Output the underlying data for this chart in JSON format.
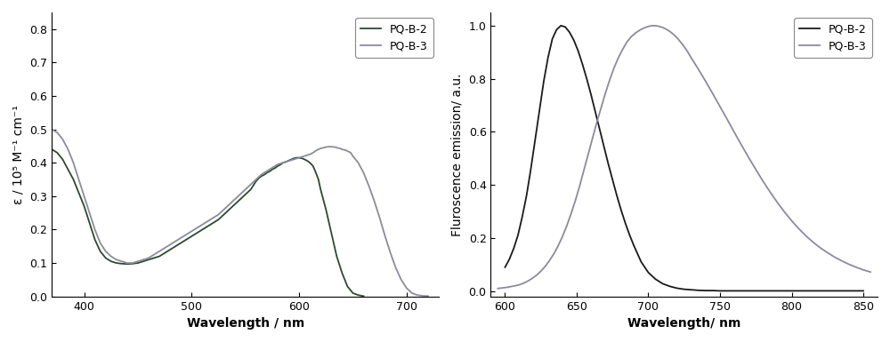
{
  "left_plot": {
    "xlabel": "Wavelength / nm",
    "ylabel": "ε / 10⁵ M⁻¹ cm⁻¹",
    "xlim": [
      370,
      730
    ],
    "ylim": [
      0.0,
      0.85
    ],
    "yticks": [
      0.0,
      0.1,
      0.2,
      0.3,
      0.4,
      0.5,
      0.6,
      0.7,
      0.8
    ],
    "xticks": [
      400,
      500,
      600,
      700
    ],
    "legend_labels": [
      "PQ-B-2",
      "PQ-B-3"
    ],
    "pqb2_color": "#2d4a2d",
    "pqb3_color": "#8b8b9e",
    "pqb2_x": [
      370,
      375,
      380,
      385,
      390,
      395,
      400,
      405,
      410,
      415,
      420,
      425,
      430,
      435,
      440,
      445,
      450,
      455,
      460,
      465,
      470,
      475,
      480,
      485,
      490,
      495,
      500,
      505,
      510,
      515,
      520,
      525,
      530,
      535,
      540,
      545,
      550,
      555,
      558,
      560,
      563,
      565,
      568,
      570,
      573,
      575,
      578,
      580,
      583,
      585,
      588,
      590,
      593,
      595,
      598,
      600,
      603,
      605,
      608,
      610,
      613,
      615,
      618,
      620,
      625,
      630,
      635,
      640,
      645,
      650,
      655,
      660
    ],
    "pqb2_y": [
      0.44,
      0.43,
      0.41,
      0.38,
      0.35,
      0.31,
      0.27,
      0.22,
      0.17,
      0.135,
      0.115,
      0.105,
      0.1,
      0.098,
      0.097,
      0.098,
      0.1,
      0.105,
      0.11,
      0.115,
      0.12,
      0.13,
      0.14,
      0.15,
      0.16,
      0.17,
      0.18,
      0.19,
      0.2,
      0.21,
      0.22,
      0.23,
      0.245,
      0.26,
      0.275,
      0.29,
      0.305,
      0.32,
      0.335,
      0.345,
      0.355,
      0.36,
      0.365,
      0.37,
      0.375,
      0.38,
      0.385,
      0.39,
      0.395,
      0.4,
      0.403,
      0.406,
      0.41,
      0.413,
      0.415,
      0.415,
      0.413,
      0.41,
      0.405,
      0.4,
      0.39,
      0.375,
      0.35,
      0.32,
      0.26,
      0.19,
      0.12,
      0.07,
      0.03,
      0.01,
      0.004,
      0.001
    ],
    "pqb3_x": [
      370,
      375,
      380,
      385,
      390,
      395,
      400,
      405,
      410,
      415,
      420,
      425,
      430,
      435,
      440,
      445,
      450,
      455,
      460,
      465,
      470,
      475,
      480,
      485,
      490,
      495,
      500,
      505,
      510,
      515,
      520,
      525,
      530,
      535,
      540,
      545,
      550,
      555,
      560,
      565,
      570,
      575,
      580,
      585,
      590,
      595,
      600,
      605,
      610,
      613,
      615,
      618,
      620,
      623,
      625,
      628,
      630,
      633,
      635,
      638,
      640,
      643,
      645,
      648,
      650,
      655,
      660,
      665,
      670,
      675,
      680,
      685,
      690,
      695,
      700,
      705,
      710,
      715,
      720
    ],
    "pqb3_y": [
      0.5,
      0.49,
      0.47,
      0.44,
      0.4,
      0.35,
      0.3,
      0.25,
      0.2,
      0.16,
      0.135,
      0.12,
      0.11,
      0.105,
      0.1,
      0.1,
      0.105,
      0.11,
      0.115,
      0.125,
      0.135,
      0.145,
      0.155,
      0.165,
      0.175,
      0.185,
      0.195,
      0.205,
      0.215,
      0.225,
      0.235,
      0.245,
      0.26,
      0.275,
      0.29,
      0.305,
      0.32,
      0.335,
      0.35,
      0.365,
      0.375,
      0.385,
      0.395,
      0.4,
      0.405,
      0.41,
      0.415,
      0.42,
      0.425,
      0.43,
      0.435,
      0.44,
      0.443,
      0.445,
      0.447,
      0.448,
      0.448,
      0.447,
      0.445,
      0.443,
      0.44,
      0.438,
      0.435,
      0.43,
      0.42,
      0.4,
      0.37,
      0.33,
      0.285,
      0.235,
      0.18,
      0.13,
      0.085,
      0.05,
      0.025,
      0.01,
      0.004,
      0.002,
      0.001
    ]
  },
  "right_plot": {
    "xlabel": "Wavelength/ nm",
    "ylabel": "Fluroscence emission/ a.u.",
    "xlim": [
      590,
      860
    ],
    "ylim": [
      -0.02,
      1.05
    ],
    "yticks": [
      0.0,
      0.2,
      0.4,
      0.6,
      0.8,
      1.0
    ],
    "xticks": [
      600,
      650,
      700,
      750,
      800,
      850
    ],
    "legend_labels": [
      "PQ-B-2",
      "PQ-B-3"
    ],
    "pqb2_color": "#1a1a1a",
    "pqb3_color": "#8b8b9e",
    "pqb2_x": [
      600,
      603,
      606,
      609,
      612,
      615,
      618,
      621,
      624,
      627,
      630,
      633,
      636,
      639,
      642,
      645,
      648,
      651,
      654,
      657,
      660,
      663,
      666,
      669,
      672,
      675,
      678,
      681,
      684,
      687,
      690,
      695,
      700,
      705,
      710,
      715,
      720,
      725,
      730,
      735,
      740,
      745,
      750,
      755,
      760,
      770,
      780,
      790,
      800,
      810,
      820,
      830,
      840,
      850
    ],
    "pqb2_y": [
      0.09,
      0.12,
      0.16,
      0.21,
      0.28,
      0.36,
      0.46,
      0.57,
      0.68,
      0.79,
      0.88,
      0.95,
      0.985,
      1.0,
      0.995,
      0.975,
      0.945,
      0.905,
      0.855,
      0.8,
      0.74,
      0.675,
      0.61,
      0.545,
      0.48,
      0.42,
      0.36,
      0.305,
      0.255,
      0.21,
      0.17,
      0.11,
      0.07,
      0.045,
      0.028,
      0.018,
      0.011,
      0.007,
      0.005,
      0.003,
      0.002,
      0.002,
      0.001,
      0.001,
      0.001,
      0.001,
      0.001,
      0.001,
      0.001,
      0.001,
      0.001,
      0.001,
      0.001,
      0.001
    ],
    "pqb3_x": [
      595,
      598,
      601,
      604,
      607,
      610,
      613,
      616,
      619,
      622,
      625,
      628,
      631,
      634,
      637,
      640,
      643,
      646,
      649,
      652,
      655,
      658,
      661,
      664,
      667,
      670,
      673,
      676,
      679,
      682,
      685,
      688,
      691,
      694,
      697,
      700,
      703,
      706,
      709,
      712,
      715,
      718,
      721,
      724,
      727,
      730,
      735,
      740,
      745,
      750,
      755,
      760,
      765,
      770,
      775,
      780,
      785,
      790,
      795,
      800,
      805,
      810,
      815,
      820,
      825,
      830,
      835,
      840,
      845,
      850,
      855
    ],
    "pqb3_y": [
      0.01,
      0.012,
      0.014,
      0.017,
      0.02,
      0.024,
      0.03,
      0.038,
      0.048,
      0.06,
      0.075,
      0.093,
      0.115,
      0.14,
      0.17,
      0.205,
      0.245,
      0.29,
      0.34,
      0.395,
      0.455,
      0.515,
      0.575,
      0.635,
      0.69,
      0.745,
      0.795,
      0.84,
      0.878,
      0.91,
      0.938,
      0.958,
      0.972,
      0.983,
      0.991,
      0.997,
      1.0,
      0.999,
      0.995,
      0.988,
      0.978,
      0.965,
      0.948,
      0.928,
      0.905,
      0.878,
      0.835,
      0.79,
      0.743,
      0.695,
      0.647,
      0.598,
      0.55,
      0.503,
      0.458,
      0.414,
      0.373,
      0.334,
      0.298,
      0.265,
      0.235,
      0.208,
      0.184,
      0.163,
      0.145,
      0.128,
      0.114,
      0.101,
      0.09,
      0.08,
      0.072
    ]
  }
}
